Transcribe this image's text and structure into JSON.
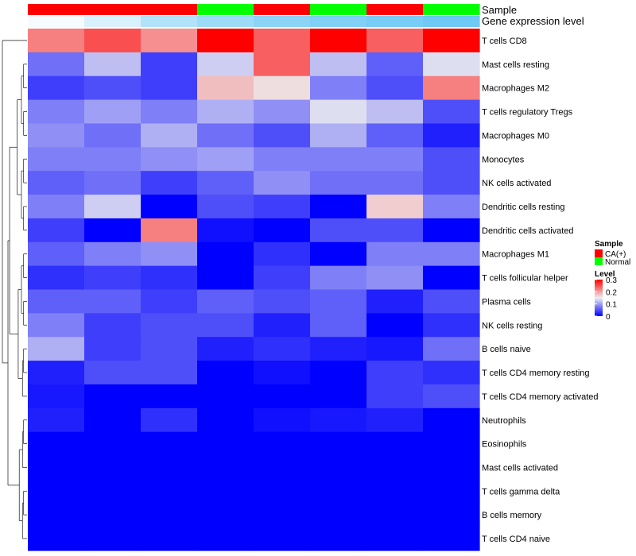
{
  "chart_data": {
    "type": "heatmap",
    "annotation_titles": [
      "Sample",
      "Gene expression level"
    ],
    "rows": [
      "T cells CD8",
      "Mast cells resting",
      "Macrophages M2",
      "T cells regulatory  Tregs",
      "Macrophages M0",
      "Monocytes",
      "NK cells activated",
      "Dendritic cells resting",
      "Dendritic cells activated",
      "Macrophages M1",
      "T cells follicular helper",
      "Plasma cells",
      "NK cells resting",
      "B cells naive",
      "T cells CD4 memory resting",
      "T cells CD4 memory activated",
      "Neutrophils",
      "Eosinophils",
      "Mast cells activated",
      "T cells gamma delta",
      "B cells memory",
      "T cells CD4 naive"
    ],
    "samples": [
      "CA(+)",
      "CA(+)",
      "CA(+)",
      "Normal",
      "CA(+)",
      "Normal",
      "CA(+)",
      "Normal"
    ],
    "gene_expression_level": [
      0.01,
      0.04,
      0.08,
      0.1,
      0.12,
      0.13,
      0.14,
      0.15
    ],
    "values": [
      [
        0.22,
        0.25,
        0.21,
        0.3,
        0.24,
        0.3,
        0.24,
        0.3
      ],
      [
        0.07,
        0.12,
        0.04,
        0.13,
        0.24,
        0.12,
        0.06,
        0.14
      ],
      [
        0.04,
        0.05,
        0.04,
        0.18,
        0.16,
        0.08,
        0.05,
        0.22
      ],
      [
        0.08,
        0.1,
        0.08,
        0.11,
        0.09,
        0.14,
        0.12,
        0.05
      ],
      [
        0.09,
        0.07,
        0.11,
        0.07,
        0.05,
        0.11,
        0.06,
        0.02
      ],
      [
        0.08,
        0.08,
        0.09,
        0.1,
        0.08,
        0.08,
        0.08,
        0.05
      ],
      [
        0.06,
        0.07,
        0.04,
        0.06,
        0.09,
        0.07,
        0.07,
        0.05
      ],
      [
        0.08,
        0.13,
        0.0,
        0.05,
        0.04,
        0.0,
        0.17,
        0.08
      ],
      [
        0.04,
        0.0,
        0.22,
        0.01,
        0.0,
        0.05,
        0.05,
        0.0
      ],
      [
        0.06,
        0.08,
        0.09,
        0.0,
        0.03,
        0.0,
        0.08,
        0.08
      ],
      [
        0.03,
        0.04,
        0.03,
        0.0,
        0.04,
        0.08,
        0.09,
        0.0
      ],
      [
        0.06,
        0.06,
        0.04,
        0.06,
        0.05,
        0.06,
        0.02,
        0.05
      ],
      [
        0.08,
        0.04,
        0.05,
        0.05,
        0.02,
        0.06,
        0.0,
        0.03
      ],
      [
        0.11,
        0.04,
        0.05,
        0.02,
        0.03,
        0.02,
        0.015,
        0.07
      ],
      [
        0.02,
        0.05,
        0.05,
        0.0,
        0.01,
        0.0,
        0.04,
        0.03
      ],
      [
        0.015,
        0.0,
        0.0,
        0.0,
        0.0,
        0.0,
        0.04,
        0.05
      ],
      [
        0.02,
        0.0,
        0.03,
        0.0,
        0.01,
        0.015,
        0.02,
        0.0
      ],
      [
        0,
        0,
        0,
        0,
        0,
        0,
        0,
        0
      ],
      [
        0,
        0,
        0,
        0,
        0,
        0,
        0,
        0
      ],
      [
        0,
        0,
        0,
        0,
        0,
        0,
        0,
        0
      ],
      [
        0,
        0,
        0,
        0,
        0,
        0,
        0,
        0
      ],
      [
        0,
        0,
        0,
        0,
        0,
        0,
        0,
        0
      ]
    ],
    "color_scale": {
      "min": 0,
      "max": 0.3,
      "low": "#0000ff",
      "mid": "#eeeef0",
      "high": "#ff0000",
      "mid_value": 0.15
    },
    "gene_level_scale": {
      "low": "#ffffff",
      "high": "#6ec9f5"
    },
    "legend": {
      "sample_title": "Sample",
      "sample_items": [
        {
          "label": "CA(+)",
          "color": "#ff0000"
        },
        {
          "label": "Normal",
          "color": "#00ff00"
        }
      ],
      "level_title": "Level",
      "level_ticks": [
        "0.3",
        "0.2",
        "0.1",
        "0"
      ],
      "placement": "right"
    }
  }
}
